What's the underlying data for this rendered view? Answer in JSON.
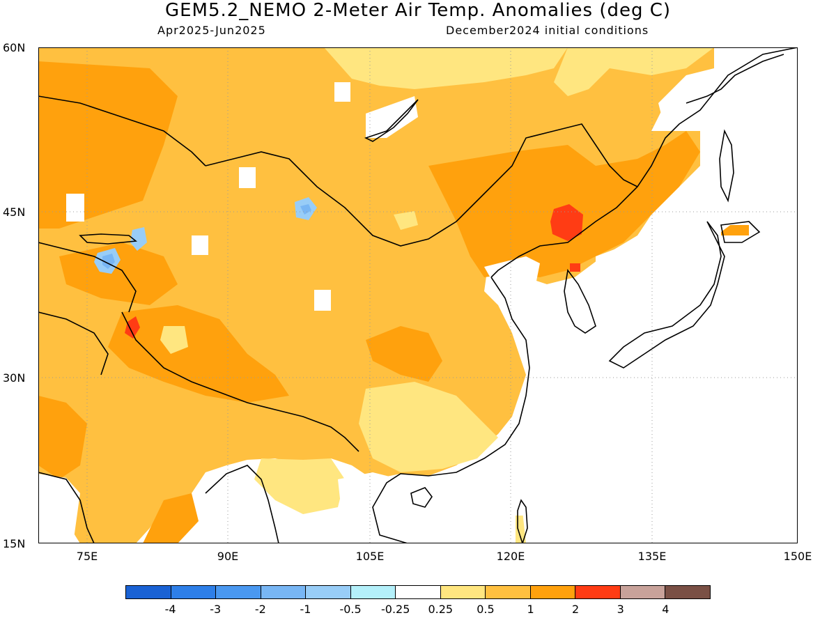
{
  "title": "GEM5.2_NEMO 2-Meter Air Temp. Anomalies (deg C)",
  "subtitle_left": "Apr2025-Jun2025",
  "subtitle_right": "December2024 initial conditions",
  "lat_labels": [
    "60N",
    "45N",
    "30N",
    "15N"
  ],
  "lon_labels": [
    "75E",
    "90E",
    "105E",
    "120E",
    "135E",
    "150E"
  ],
  "colorbar": {
    "colors": [
      "#1a62d4",
      "#2e7fe8",
      "#4a98f0",
      "#78b6f4",
      "#98cdf7",
      "#b4f0fa",
      "#ffffff",
      "#ffe680",
      "#ffc040",
      "#ffa10d",
      "#ff3c14",
      "#c8a29a",
      "#7a5045"
    ],
    "labels": [
      "-4",
      "-3",
      "-2",
      "-1",
      "-0.5",
      "-0.25",
      "0.25",
      "0.5",
      "1",
      "2",
      "3",
      "4"
    ]
  },
  "map_colors": {
    "white": "#ffffff",
    "light": "#ffe680",
    "medium": "#ffc040",
    "strong": "#ffa10d",
    "red": "#ff3c14",
    "cool": "#98cdf7",
    "coolest": "#78b6f4",
    "coast": "#000000"
  }
}
